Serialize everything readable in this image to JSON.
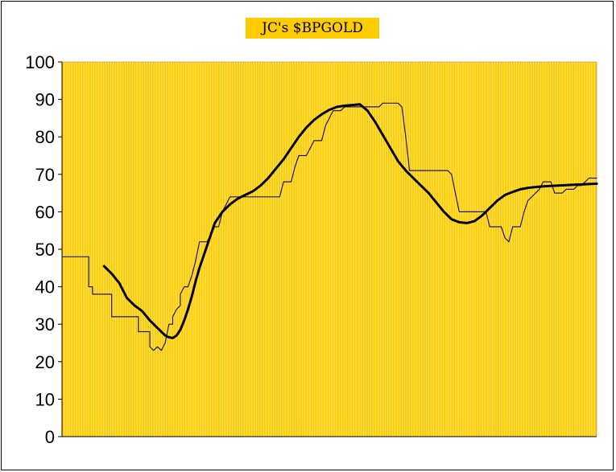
{
  "chart_data": {
    "type": "line",
    "title": "JC's $BPGOLD",
    "xlabel": "",
    "ylabel": "",
    "ylim": [
      0,
      100
    ],
    "yticks": [
      0,
      10,
      20,
      30,
      40,
      50,
      60,
      70,
      80,
      90,
      100
    ],
    "grid": "vertical",
    "colors": {
      "plot_bg": "#ffcc00",
      "grid": "#ffffff",
      "raw_line": "#1a1a66",
      "smooth_line": "#000000"
    },
    "series": [
      {
        "style": "thin",
        "points": [
          [
            0,
            48
          ],
          [
            7,
            48
          ],
          [
            7,
            40
          ],
          [
            8,
            40
          ],
          [
            8,
            38
          ],
          [
            13,
            38
          ],
          [
            13,
            32
          ],
          [
            20,
            32
          ],
          [
            20,
            28
          ],
          [
            23,
            28
          ],
          [
            23,
            24
          ],
          [
            24,
            23
          ],
          [
            25,
            24
          ],
          [
            26,
            23
          ],
          [
            27,
            25
          ],
          [
            28,
            30
          ],
          [
            29,
            30
          ],
          [
            29,
            32
          ],
          [
            30,
            34
          ],
          [
            31,
            35
          ],
          [
            31,
            38
          ],
          [
            32,
            40
          ],
          [
            33,
            40
          ],
          [
            34,
            43
          ],
          [
            35,
            47
          ],
          [
            36,
            52
          ],
          [
            38,
            52
          ],
          [
            39,
            54
          ],
          [
            40,
            56
          ],
          [
            41,
            56
          ],
          [
            42,
            60
          ],
          [
            43,
            62
          ],
          [
            44,
            64
          ],
          [
            57,
            64
          ],
          [
            58,
            68
          ],
          [
            60,
            68
          ],
          [
            61,
            72
          ],
          [
            62,
            75
          ],
          [
            64,
            75
          ],
          [
            65,
            77
          ],
          [
            66,
            79
          ],
          [
            68,
            79
          ],
          [
            69,
            83
          ],
          [
            70,
            85
          ],
          [
            71,
            87
          ],
          [
            73,
            87
          ],
          [
            74,
            88
          ],
          [
            83,
            88
          ],
          [
            84,
            89
          ],
          [
            88,
            89
          ],
          [
            89,
            88
          ],
          [
            90,
            80
          ],
          [
            91,
            71
          ],
          [
            101,
            71
          ],
          [
            102,
            70
          ],
          [
            103,
            65
          ],
          [
            104,
            60
          ],
          [
            111,
            60
          ],
          [
            112,
            56
          ],
          [
            115,
            56
          ],
          [
            116,
            53
          ],
          [
            117,
            52
          ],
          [
            118,
            56
          ],
          [
            120,
            56
          ],
          [
            121,
            60
          ],
          [
            122,
            63
          ],
          [
            123,
            64
          ],
          [
            124,
            65
          ],
          [
            125,
            66
          ],
          [
            126,
            68
          ],
          [
            128,
            68
          ],
          [
            129,
            65
          ],
          [
            131,
            65
          ],
          [
            132,
            66
          ],
          [
            134,
            66
          ],
          [
            135,
            67
          ],
          [
            136,
            67
          ],
          [
            137,
            68
          ],
          [
            138,
            69
          ],
          [
            140,
            69
          ]
        ]
      },
      {
        "style": "thick",
        "points": [
          [
            11,
            45.5
          ],
          [
            13,
            43.5
          ],
          [
            15,
            41
          ],
          [
            17,
            37
          ],
          [
            19,
            35
          ],
          [
            21,
            33.5
          ],
          [
            23,
            31
          ],
          [
            25,
            29
          ],
          [
            26,
            28
          ],
          [
            27,
            27
          ],
          [
            28,
            26.5
          ],
          [
            29,
            26.3
          ],
          [
            30,
            27
          ],
          [
            31,
            28.5
          ],
          [
            32,
            31
          ],
          [
            33,
            34
          ],
          [
            34,
            37.5
          ],
          [
            35,
            41.5
          ],
          [
            36,
            45
          ],
          [
            37,
            48
          ],
          [
            38,
            51
          ],
          [
            39,
            54
          ],
          [
            40,
            57
          ],
          [
            42,
            60
          ],
          [
            44,
            62
          ],
          [
            46,
            63.5
          ],
          [
            48,
            64.5
          ],
          [
            50,
            65.5
          ],
          [
            52,
            67
          ],
          [
            54,
            69
          ],
          [
            56,
            71.5
          ],
          [
            58,
            74
          ],
          [
            60,
            77
          ],
          [
            62,
            80
          ],
          [
            64,
            82.5
          ],
          [
            66,
            84.5
          ],
          [
            68,
            86
          ],
          [
            70,
            87.2
          ],
          [
            72,
            88
          ],
          [
            74,
            88.3
          ],
          [
            76,
            88.5
          ],
          [
            78,
            88.7
          ],
          [
            80,
            87
          ],
          [
            82,
            84
          ],
          [
            84,
            80.5
          ],
          [
            86,
            77
          ],
          [
            88,
            73.5
          ],
          [
            90,
            71
          ],
          [
            92,
            69
          ],
          [
            94,
            67
          ],
          [
            96,
            65
          ],
          [
            98,
            62.5
          ],
          [
            100,
            60
          ],
          [
            102,
            58
          ],
          [
            104,
            57.2
          ],
          [
            106,
            57
          ],
          [
            108,
            57.5
          ],
          [
            110,
            59
          ],
          [
            112,
            61
          ],
          [
            114,
            63
          ],
          [
            116,
            64.5
          ],
          [
            118,
            65.3
          ],
          [
            120,
            66
          ],
          [
            122,
            66.4
          ],
          [
            124,
            66.6
          ],
          [
            126,
            66.8
          ],
          [
            128,
            66.9
          ],
          [
            130,
            67
          ],
          [
            132,
            67.1
          ],
          [
            134,
            67.2
          ],
          [
            136,
            67.3
          ],
          [
            138,
            67.4
          ],
          [
            140,
            67.5
          ]
        ]
      }
    ]
  }
}
